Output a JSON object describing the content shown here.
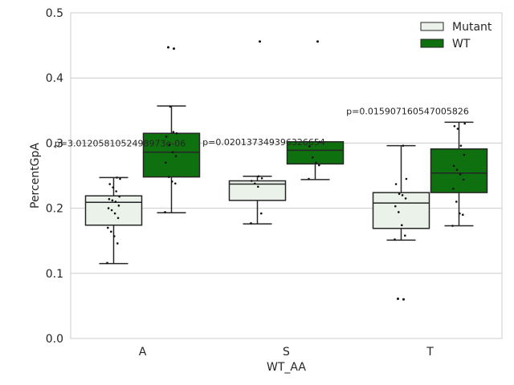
{
  "chart_data": {
    "type": "box",
    "xlabel": "WT_AA",
    "ylabel": "PercentGpA",
    "ylim": [
      0.0,
      0.5
    ],
    "yticks": [
      "0.0",
      "0.1",
      "0.2",
      "0.3",
      "0.4",
      "0.5"
    ],
    "categories": [
      "A",
      "S",
      "T"
    ],
    "grid": "horizontal",
    "legend_position": "top-right",
    "series": [
      {
        "name": "Mutant",
        "color": "#eaf2ea",
        "boxes": [
          {
            "category": "A",
            "whisker_low": 0.115,
            "q1": 0.174,
            "median": 0.209,
            "q3": 0.219,
            "whisker_high": 0.247,
            "points": [
              0.116,
              0.146,
              0.157,
              0.164,
              0.17,
              0.185,
              0.192,
              0.197,
              0.2,
              0.204,
              0.21,
              0.212,
              0.214,
              0.218,
              0.226,
              0.232,
              0.237,
              0.245,
              0.247
            ],
            "outliers": []
          },
          {
            "category": "S",
            "whisker_low": 0.176,
            "q1": 0.212,
            "median": 0.237,
            "q3": 0.242,
            "whisker_high": 0.249,
            "points": [
              0.177,
              0.192,
              0.233,
              0.238,
              0.242,
              0.246,
              0.249
            ],
            "outliers": [
              0.456
            ]
          },
          {
            "category": "T",
            "whisker_low": 0.151,
            "q1": 0.169,
            "median": 0.208,
            "q3": 0.224,
            "whisker_high": 0.296,
            "points": [
              0.152,
              0.158,
              0.174,
              0.194,
              0.203,
              0.215,
              0.22,
              0.222,
              0.237,
              0.245,
              0.296
            ],
            "outliers": [
              0.06,
              0.061
            ]
          }
        ]
      },
      {
        "name": "WT",
        "color": "#0f700f",
        "boxes": [
          {
            "category": "A",
            "whisker_low": 0.193,
            "q1": 0.248,
            "median": 0.286,
            "q3": 0.315,
            "whisker_high": 0.357,
            "points": [
              0.194,
              0.238,
              0.241,
              0.248,
              0.27,
              0.28,
              0.286,
              0.297,
              0.31,
              0.315,
              0.317,
              0.356
            ],
            "outliers": [
              0.445,
              0.447
            ]
          },
          {
            "category": "S",
            "whisker_low": 0.244,
            "q1": 0.268,
            "median": 0.289,
            "q3": 0.302,
            "whisker_high": 0.302,
            "points": [
              0.245,
              0.266,
              0.27,
              0.278,
              0.295,
              0.302
            ],
            "outliers": [
              0.456
            ]
          },
          {
            "category": "T",
            "whisker_low": 0.173,
            "q1": 0.224,
            "median": 0.254,
            "q3": 0.291,
            "whisker_high": 0.332,
            "points": [
              0.173,
              0.19,
              0.192,
              0.21,
              0.23,
              0.244,
              0.252,
              0.259,
              0.265,
              0.282,
              0.296,
              0.322,
              0.326,
              0.33
            ],
            "outliers": []
          }
        ]
      }
    ],
    "annotations": [
      {
        "category": "A",
        "text": "p=3.0120581052498973e-06",
        "y": 0.3
      },
      {
        "category": "S",
        "text": "p=0.020137349396326654",
        "y": 0.302
      },
      {
        "category": "T",
        "text": "p=0.015907160547005826",
        "y": 0.349
      }
    ]
  }
}
